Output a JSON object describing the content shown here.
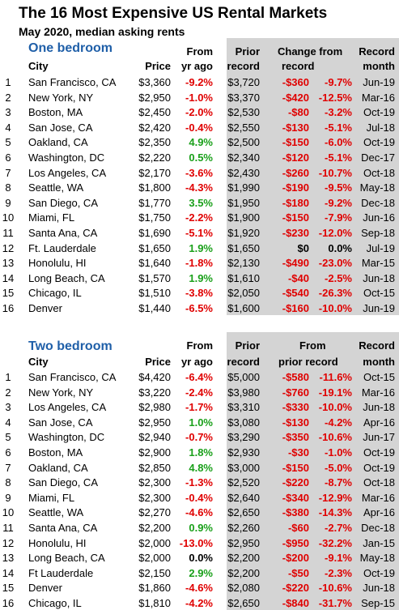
{
  "title": "The 16 Most Expensive US Rental Markets",
  "subtitle": "May 2020, median asking rents",
  "sections": [
    {
      "name": "One bedroom",
      "headers": {
        "city": "City",
        "price": "Price",
        "change_l1": "From",
        "change_l2": "yr ago",
        "prior_l1": "",
        "prior_l2": "Prior",
        "prior_l3": "record",
        "from_l1": "Change from",
        "from_l2": "record",
        "month_l1": "Record",
        "month_l2": "month"
      },
      "rows": [
        {
          "rank": "1",
          "city": "San Francisco, CA",
          "price": "$3,360",
          "change": "-9.2%",
          "prior": "$3,720",
          "chg_dollar": "-$360",
          "chg_pct": "-9.7%",
          "month": "Jun-19"
        },
        {
          "rank": "2",
          "city": "New York, NY",
          "price": "$2,950",
          "change": "-1.0%",
          "prior": "$3,370",
          "chg_dollar": "-$420",
          "chg_pct": "-12.5%",
          "month": "Mar-16"
        },
        {
          "rank": "3",
          "city": "Boston, MA",
          "price": "$2,450",
          "change": "-2.0%",
          "prior": "$2,530",
          "chg_dollar": "-$80",
          "chg_pct": "-3.2%",
          "month": "Oct-19"
        },
        {
          "rank": "4",
          "city": "San Jose, CA",
          "price": "$2,420",
          "change": "-0.4%",
          "prior": "$2,550",
          "chg_dollar": "-$130",
          "chg_pct": "-5.1%",
          "month": "Jul-18"
        },
        {
          "rank": "5",
          "city": "Oakland, CA",
          "price": "$2,350",
          "change": "4.9%",
          "prior": "$2,500",
          "chg_dollar": "-$150",
          "chg_pct": "-6.0%",
          "month": "Oct-19"
        },
        {
          "rank": "6",
          "city": "Washington, DC",
          "price": "$2,220",
          "change": "0.5%",
          "prior": "$2,340",
          "chg_dollar": "-$120",
          "chg_pct": "-5.1%",
          "month": "Dec-17"
        },
        {
          "rank": "7",
          "city": "Los Angeles, CA",
          "price": "$2,170",
          "change": "-3.6%",
          "prior": "$2,430",
          "chg_dollar": "-$260",
          "chg_pct": "-10.7%",
          "month": "Oct-18"
        },
        {
          "rank": "8",
          "city": "Seattle, WA",
          "price": "$1,800",
          "change": "-4.3%",
          "prior": "$1,990",
          "chg_dollar": "-$190",
          "chg_pct": "-9.5%",
          "month": "May-18"
        },
        {
          "rank": "9",
          "city": "San Diego, CA",
          "price": "$1,770",
          "change": "3.5%",
          "prior": "$1,950",
          "chg_dollar": "-$180",
          "chg_pct": "-9.2%",
          "month": "Dec-18"
        },
        {
          "rank": "10",
          "city": "Miami, FL",
          "price": "$1,750",
          "change": "-2.2%",
          "prior": "$1,900",
          "chg_dollar": "-$150",
          "chg_pct": "-7.9%",
          "month": "Jun-16"
        },
        {
          "rank": "11",
          "city": "Santa Ana, CA",
          "price": "$1,690",
          "change": "-5.1%",
          "prior": "$1,920",
          "chg_dollar": "-$230",
          "chg_pct": "-12.0%",
          "month": "Sep-18"
        },
        {
          "rank": "12",
          "city": "Ft. Lauderdale",
          "price": "$1,650",
          "change": "1.9%",
          "prior": "$1,650",
          "chg_dollar": "$0",
          "chg_pct": "0.0%",
          "month": "Jul-19"
        },
        {
          "rank": "13",
          "city": "Honolulu, HI",
          "price": "$1,640",
          "change": "-1.8%",
          "prior": "$2,130",
          "chg_dollar": "-$490",
          "chg_pct": "-23.0%",
          "month": "Mar-15"
        },
        {
          "rank": "14",
          "city": "Long Beach, CA",
          "price": "$1,570",
          "change": "1.9%",
          "prior": "$1,610",
          "chg_dollar": "-$40",
          "chg_pct": "-2.5%",
          "month": "Jun-18"
        },
        {
          "rank": "15",
          "city": "Chicago, IL",
          "price": "$1,510",
          "change": "-3.8%",
          "prior": "$2,050",
          "chg_dollar": "-$540",
          "chg_pct": "-26.3%",
          "month": "Oct-15"
        },
        {
          "rank": "16",
          "city": "Denver",
          "price": "$1,440",
          "change": "-6.5%",
          "prior": "$1,600",
          "chg_dollar": "-$160",
          "chg_pct": "-10.0%",
          "month": "Jun-19"
        }
      ]
    },
    {
      "name": "Two bedroom",
      "headers": {
        "city": "City",
        "price": "Price",
        "change_l1": "From",
        "change_l2": "yr ago",
        "prior_l1": "Prior",
        "prior_l2": "record",
        "prior_l3": "",
        "from_l1": "From",
        "from_l2": "prior record",
        "month_l1": "Record",
        "month_l2": "month"
      },
      "rows": [
        {
          "rank": "1",
          "city": "San Francisco, CA",
          "price": "$4,420",
          "change": "-6.4%",
          "prior": "$5,000",
          "chg_dollar": "-$580",
          "chg_pct": "-11.6%",
          "month": "Oct-15"
        },
        {
          "rank": "2",
          "city": "New York, NY",
          "price": "$3,220",
          "change": "-2.4%",
          "prior": "$3,980",
          "chg_dollar": "-$760",
          "chg_pct": "-19.1%",
          "month": "Mar-16"
        },
        {
          "rank": "3",
          "city": "Los Angeles, CA",
          "price": "$2,980",
          "change": "-1.7%",
          "prior": "$3,310",
          "chg_dollar": "-$330",
          "chg_pct": "-10.0%",
          "month": "Jun-18"
        },
        {
          "rank": "4",
          "city": "San Jose, CA",
          "price": "$2,950",
          "change": "1.0%",
          "prior": "$3,080",
          "chg_dollar": "-$130",
          "chg_pct": "-4.2%",
          "month": "Apr-16"
        },
        {
          "rank": "5",
          "city": "Washington, DC",
          "price": "$2,940",
          "change": "-0.7%",
          "prior": "$3,290",
          "chg_dollar": "-$350",
          "chg_pct": "-10.6%",
          "month": "Jun-17"
        },
        {
          "rank": "6",
          "city": "Boston, MA",
          "price": "$2,900",
          "change": "1.8%",
          "prior": "$2,930",
          "chg_dollar": "-$30",
          "chg_pct": "-1.0%",
          "month": "Oct-19"
        },
        {
          "rank": "7",
          "city": "Oakland, CA",
          "price": "$2,850",
          "change": "4.8%",
          "prior": "$3,000",
          "chg_dollar": "-$150",
          "chg_pct": "-5.0%",
          "month": "Oct-19"
        },
        {
          "rank": "8",
          "city": "San Diego, CA",
          "price": "$2,300",
          "change": "-1.3%",
          "prior": "$2,520",
          "chg_dollar": "-$220",
          "chg_pct": "-8.7%",
          "month": "Oct-18"
        },
        {
          "rank": "9",
          "city": "Miami, FL",
          "price": "$2,300",
          "change": "-0.4%",
          "prior": "$2,640",
          "chg_dollar": "-$340",
          "chg_pct": "-12.9%",
          "month": "Mar-16"
        },
        {
          "rank": "10",
          "city": "Seattle, WA",
          "price": "$2,270",
          "change": "-4.6%",
          "prior": "$2,650",
          "chg_dollar": "-$380",
          "chg_pct": "-14.3%",
          "month": "Apr-16"
        },
        {
          "rank": "11",
          "city": "Santa Ana, CA",
          "price": "$2,200",
          "change": "0.9%",
          "prior": "$2,260",
          "chg_dollar": "-$60",
          "chg_pct": "-2.7%",
          "month": "Dec-18"
        },
        {
          "rank": "12",
          "city": "Honolulu, HI",
          "price": "$2,000",
          "change": "-13.0%",
          "prior": "$2,950",
          "chg_dollar": "-$950",
          "chg_pct": "-32.2%",
          "month": "Jan-15"
        },
        {
          "rank": "13",
          "city": "Long Beach, CA",
          "price": "$2,000",
          "change": "0.0%",
          "prior": "$2,200",
          "chg_dollar": "-$200",
          "chg_pct": "-9.1%",
          "month": "May-18"
        },
        {
          "rank": "14",
          "city": "Ft Lauderdale",
          "price": "$2,150",
          "change": "2.9%",
          "prior": "$2,200",
          "chg_dollar": "-$50",
          "chg_pct": "-2.3%",
          "month": "Oct-19"
        },
        {
          "rank": "15",
          "city": "Denver",
          "price": "$1,860",
          "change": "-4.6%",
          "prior": "$2,080",
          "chg_dollar": "-$220",
          "chg_pct": "-10.6%",
          "month": "Jun-18"
        },
        {
          "rank": "16",
          "city": "Chicago, IL",
          "price": "$1,810",
          "change": "-4.2%",
          "prior": "$2,650",
          "chg_dollar": "-$840",
          "chg_pct": "-31.7%",
          "month": "Sep-15"
        }
      ]
    }
  ],
  "colors": {
    "negative": "#e00000",
    "positive": "#1aa01a",
    "neutral": "#000000",
    "section_title": "#1f5fa8",
    "shaded_area": "#d4d4d4"
  }
}
